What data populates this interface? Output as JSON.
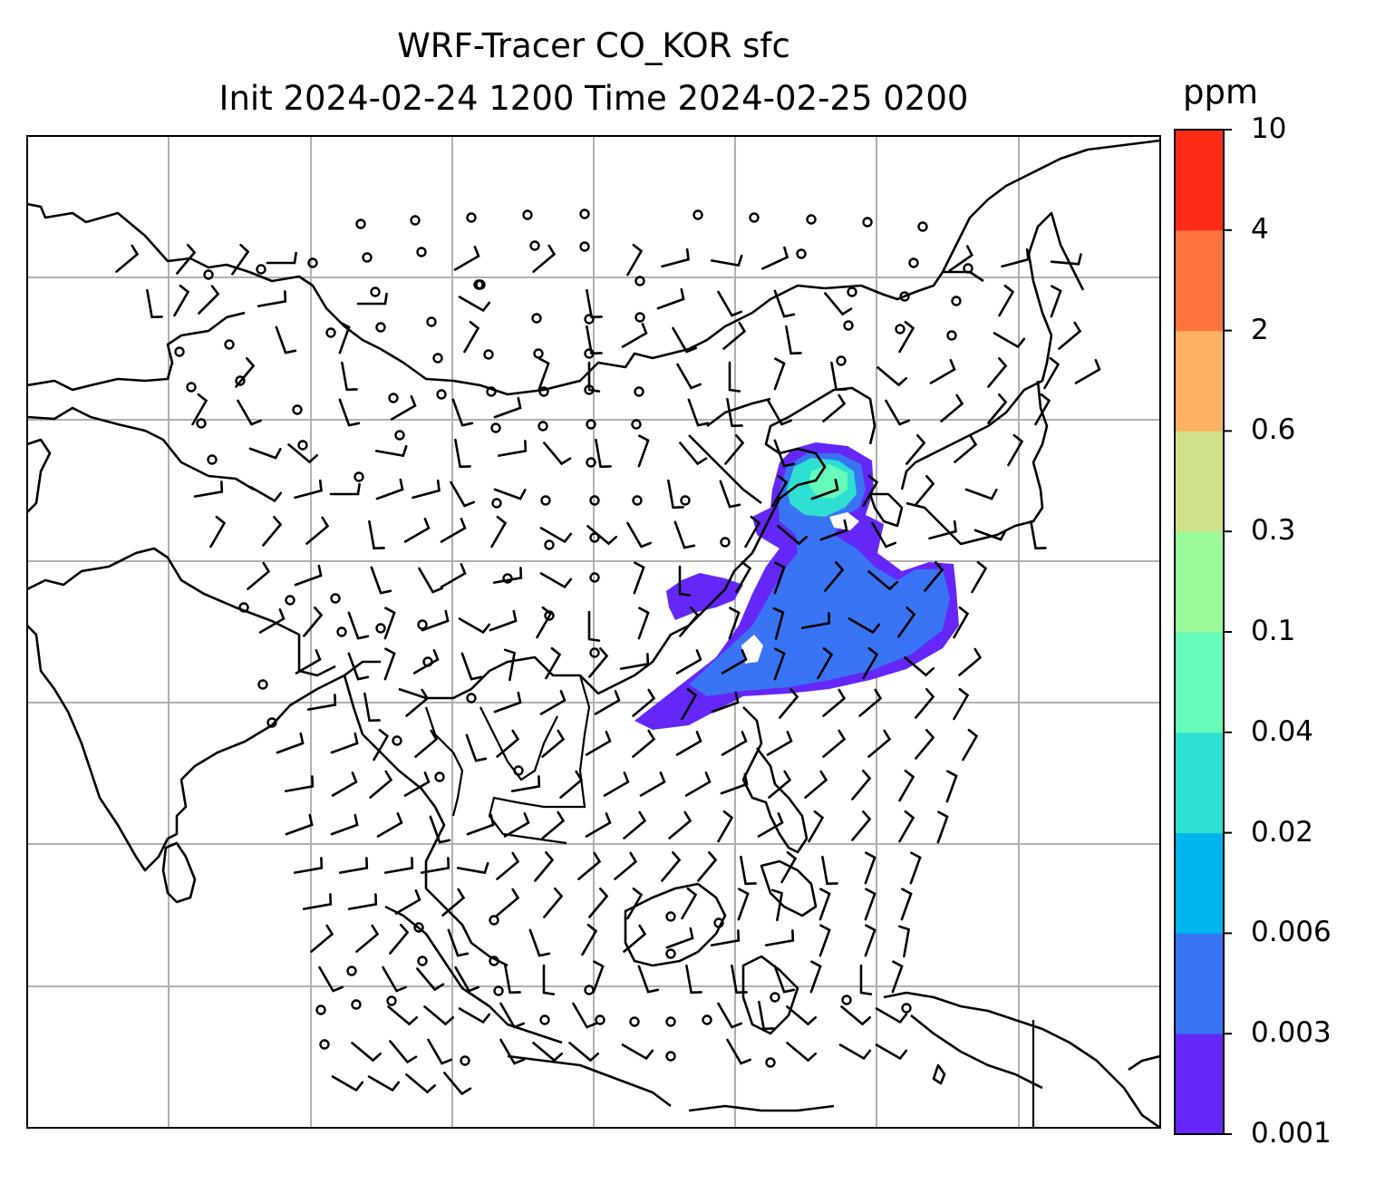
{
  "title": {
    "line1": "WRF-Tracer CO_KOR sfc",
    "line2": "Init 2024-02-24 1200 Time 2024-02-25 0200"
  },
  "colorbar": {
    "unit": "ppm",
    "levels": [
      "0.001",
      "0.003",
      "0.006",
      "0.02",
      "0.04",
      "0.1",
      "0.3",
      "0.6",
      "2",
      "4",
      "10"
    ],
    "colors": [
      "#6427f7",
      "#3874f3",
      "#00b4ee",
      "#2fe0d2",
      "#66fbb8",
      "#9bfb99",
      "#cfe28a",
      "#fdb162",
      "#fe733e",
      "#fe2b17"
    ]
  },
  "map": {
    "gridlines": true,
    "features": [
      "coastlines",
      "country-borders",
      "wind-barbs",
      "tracer-concentration"
    ],
    "colors": {
      "coast": "#000000",
      "grid": "#b0b0b0",
      "barb": "#000000"
    }
  }
}
